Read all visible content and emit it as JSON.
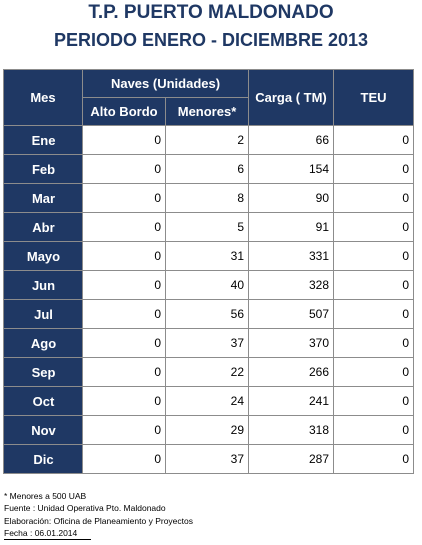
{
  "header": {
    "title": "T.P. PUERTO MALDONADO",
    "subtitle": "PERIODO ENERO - DICIEMBRE 2013"
  },
  "table": {
    "col_mes": "Mes",
    "col_naves": "Naves (Unidades)",
    "col_alto_bordo": "Alto Bordo",
    "col_menores": "Menores*",
    "col_carga": "Carga ( TM)",
    "col_teu": "TEU",
    "rows": [
      {
        "mes": "Ene",
        "alto_bordo": "0",
        "menores": "2",
        "carga": "66",
        "teu": "0"
      },
      {
        "mes": "Feb",
        "alto_bordo": "0",
        "menores": "6",
        "carga": "154",
        "teu": "0"
      },
      {
        "mes": "Mar",
        "alto_bordo": "0",
        "menores": "8",
        "carga": "90",
        "teu": "0"
      },
      {
        "mes": "Abr",
        "alto_bordo": "0",
        "menores": "5",
        "carga": "91",
        "teu": "0"
      },
      {
        "mes": "Mayo",
        "alto_bordo": "0",
        "menores": "31",
        "carga": "331",
        "teu": "0"
      },
      {
        "mes": "Jun",
        "alto_bordo": "0",
        "menores": "40",
        "carga": "328",
        "teu": "0"
      },
      {
        "mes": "Jul",
        "alto_bordo": "0",
        "menores": "56",
        "carga": "507",
        "teu": "0"
      },
      {
        "mes": "Ago",
        "alto_bordo": "0",
        "menores": "37",
        "carga": "370",
        "teu": "0"
      },
      {
        "mes": "Sep",
        "alto_bordo": "0",
        "menores": "22",
        "carga": "266",
        "teu": "0"
      },
      {
        "mes": "Oct",
        "alto_bordo": "0",
        "menores": "24",
        "carga": "241",
        "teu": "0"
      },
      {
        "mes": "Nov",
        "alto_bordo": "0",
        "menores": "29",
        "carga": "318",
        "teu": "0"
      },
      {
        "mes": "Dic",
        "alto_bordo": "0",
        "menores": "37",
        "carga": "287",
        "teu": "0"
      }
    ]
  },
  "footer": {
    "note1": "* Menores a 500 UAB",
    "note2": "Fuente : Unidad Operativa Pto. Maldonado",
    "note3": "Elaboración: Oficina de Planeamiento y Proyectos",
    "note4": "Fecha : 06.01.2014"
  },
  "colors": {
    "header_bg": "#1f3864",
    "title_color": "#1f3864"
  }
}
